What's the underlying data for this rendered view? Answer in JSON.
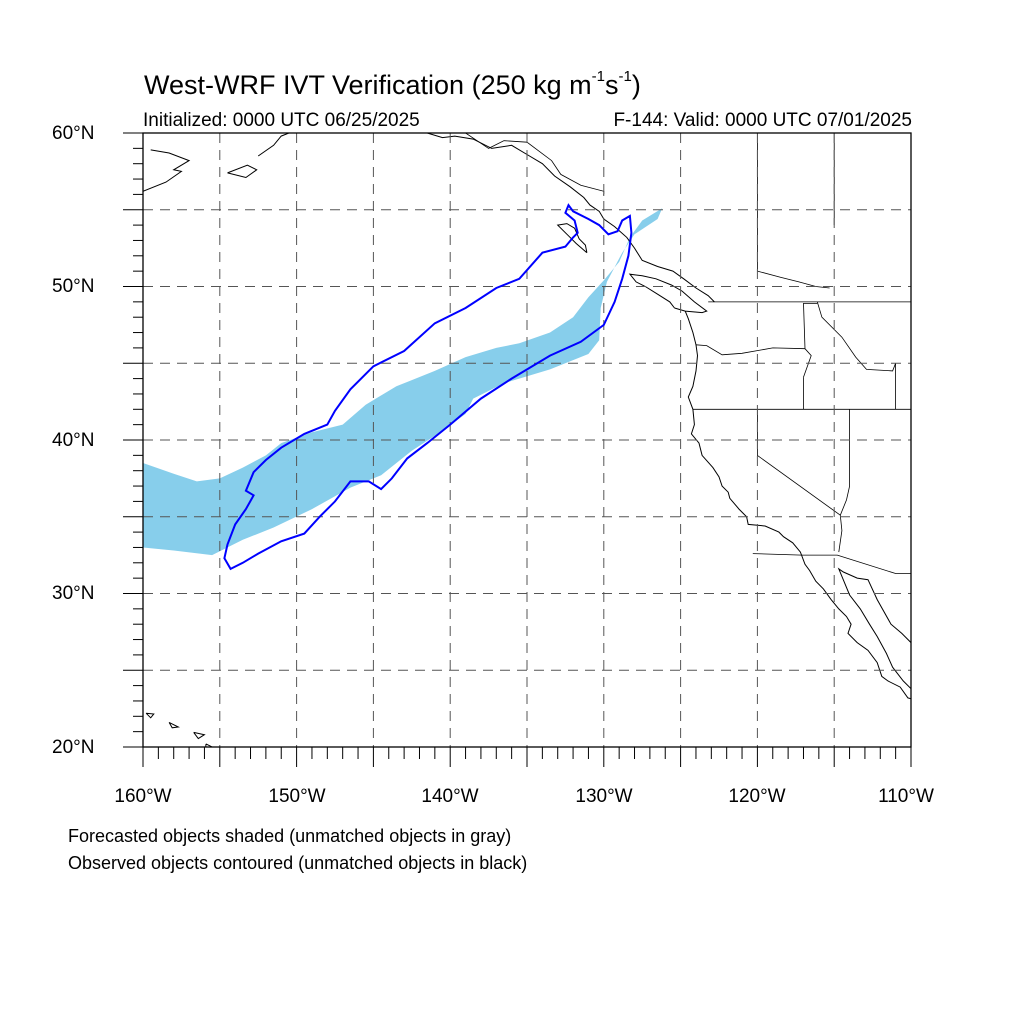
{
  "title": {
    "main": "West-WRF IVT Verification (250 kg m",
    "exp1": "-1",
    "mid": "s",
    "exp2": "-1",
    "end": ")"
  },
  "subtitle_left": "Initialized: 0000 UTC 06/25/2025",
  "subtitle_right": "F-144: Valid: 0000 UTC 07/01/2025",
  "lat_labels": [
    "60°N",
    "50°N",
    "40°N",
    "30°N",
    "20°N"
  ],
  "lon_labels": [
    "160°W",
    "150°W",
    "140°W",
    "130°W",
    "120°W",
    "110°W"
  ],
  "footnotes": [
    "Forecasted objects shaded (unmatched objects in gray)",
    "Observed objects contoured (unmatched objects in black)"
  ],
  "map_extent": {
    "lon": [
      -160,
      -110
    ],
    "lat": [
      20,
      60
    ]
  },
  "colors": {
    "forecast_fill": "#87ceeb",
    "observed_contour": "#0000ff",
    "coast": "#000000",
    "grid": "#555555"
  },
  "forecast_object": [
    [
      -160,
      38.5
    ],
    [
      -158,
      37.8
    ],
    [
      -156.5,
      37.3
    ],
    [
      -155,
      37.5
    ],
    [
      -153.5,
      38.2
    ],
    [
      -152,
      39
    ],
    [
      -151,
      39.8
    ],
    [
      -149,
      40.5
    ],
    [
      -147,
      41
    ],
    [
      -145.5,
      42.3
    ],
    [
      -143.5,
      43.5
    ],
    [
      -141,
      44.5
    ],
    [
      -139,
      45.4
    ],
    [
      -137,
      46
    ],
    [
      -135.5,
      46.3
    ],
    [
      -133.5,
      47
    ],
    [
      -132,
      48
    ],
    [
      -131,
      49.3
    ],
    [
      -130,
      50.4
    ],
    [
      -129,
      51.6
    ],
    [
      -128.3,
      53.2
    ],
    [
      -127.5,
      54.3
    ],
    [
      -126.2,
      55.1
    ],
    [
      -126.5,
      54.4
    ],
    [
      -128,
      53.4
    ],
    [
      -128.8,
      52.2
    ],
    [
      -129.8,
      50.3
    ],
    [
      -130.2,
      48.6
    ],
    [
      -130.3,
      46.5
    ],
    [
      -131,
      45.6
    ],
    [
      -133.5,
      44.6
    ],
    [
      -136.5,
      43.7
    ],
    [
      -138.5,
      42.7
    ],
    [
      -139,
      41.7
    ],
    [
      -140.5,
      40.6
    ],
    [
      -142.5,
      39.3
    ],
    [
      -144.5,
      37.7
    ],
    [
      -146.5,
      36.9
    ],
    [
      -149,
      35.5
    ],
    [
      -151.5,
      34.3
    ],
    [
      -153.5,
      33.5
    ],
    [
      -155.5,
      32.5
    ],
    [
      -158,
      32.8
    ],
    [
      -160,
      33
    ]
  ],
  "observed_contour": [
    [
      -154.3,
      31.6
    ],
    [
      -153.5,
      32
    ],
    [
      -152.5,
      32.6
    ],
    [
      -151,
      33.4
    ],
    [
      -149.5,
      33.9
    ],
    [
      -148.5,
      35
    ],
    [
      -147.5,
      36
    ],
    [
      -146.5,
      37.3
    ],
    [
      -145.3,
      37.3
    ],
    [
      -144.5,
      36.8
    ],
    [
      -143.8,
      37.5
    ],
    [
      -142.8,
      38.8
    ],
    [
      -141.5,
      39.8
    ],
    [
      -140,
      41
    ],
    [
      -138,
      42.7
    ],
    [
      -136,
      44
    ],
    [
      -133.5,
      45.5
    ],
    [
      -131.5,
      46.4
    ],
    [
      -130,
      47.5
    ],
    [
      -129.3,
      49
    ],
    [
      -128.8,
      50.5
    ],
    [
      -128.4,
      52
    ],
    [
      -128.2,
      53.5
    ],
    [
      -128.3,
      54.6
    ],
    [
      -128.8,
      54.3
    ],
    [
      -129.1,
      53.6
    ],
    [
      -129.7,
      53.4
    ],
    [
      -130.3,
      54
    ],
    [
      -131,
      54.4
    ],
    [
      -132,
      54.9
    ],
    [
      -132.3,
      55.3
    ],
    [
      -132.5,
      54.8
    ],
    [
      -131.9,
      54.3
    ],
    [
      -131.7,
      53.5
    ],
    [
      -132,
      53.2
    ],
    [
      -132.5,
      52.6
    ],
    [
      -134,
      52.2
    ],
    [
      -135.5,
      50.5
    ],
    [
      -137,
      49.9
    ],
    [
      -139,
      48.6
    ],
    [
      -141,
      47.6
    ],
    [
      -143,
      45.8
    ],
    [
      -145,
      44.8
    ],
    [
      -146.5,
      43.3
    ],
    [
      -147.5,
      41.9
    ],
    [
      -148,
      41
    ],
    [
      -149.5,
      40.4
    ],
    [
      -151,
      39.5
    ],
    [
      -152,
      38.7
    ],
    [
      -152.8,
      37.9
    ],
    [
      -153.3,
      36.7
    ],
    [
      -152.8,
      36.4
    ],
    [
      -153.3,
      35.5
    ],
    [
      -154,
      34.5
    ],
    [
      -154.5,
      33.2
    ],
    [
      -154.7,
      32.3
    ],
    [
      -154.3,
      31.6
    ]
  ],
  "coastlines": [
    [
      [
        -124.7,
        48.4
      ],
      [
        -124.5,
        47.9
      ],
      [
        -124.2,
        47
      ],
      [
        -124,
        46.2
      ],
      [
        -123.9,
        45.5
      ],
      [
        -124,
        44.5
      ],
      [
        -124.2,
        43.5
      ],
      [
        -124.5,
        42.8
      ],
      [
        -124.2,
        42
      ],
      [
        -124.1,
        41
      ],
      [
        -124.3,
        40.4
      ],
      [
        -123.8,
        39.8
      ],
      [
        -123.6,
        39
      ],
      [
        -122.9,
        38.2
      ],
      [
        -122.5,
        37.6
      ],
      [
        -122.3,
        37
      ],
      [
        -121.9,
        36.6
      ],
      [
        -121.8,
        36.2
      ],
      [
        -121.2,
        35.5
      ],
      [
        -120.7,
        35
      ],
      [
        -120.6,
        34.5
      ],
      [
        -119.5,
        34.4
      ],
      [
        -118.6,
        34
      ],
      [
        -118.3,
        33.7
      ],
      [
        -117.7,
        33.3
      ],
      [
        -117.2,
        32.7
      ],
      [
        -116.9,
        31.9
      ],
      [
        -116.6,
        31.5
      ],
      [
        -116.2,
        30.8
      ],
      [
        -115.7,
        30.3
      ],
      [
        -115.2,
        29.6
      ],
      [
        -114.7,
        29
      ],
      [
        -114.2,
        28.5
      ],
      [
        -113.9,
        28
      ],
      [
        -114.1,
        27.4
      ],
      [
        -113.5,
        26.8
      ],
      [
        -112.8,
        26.3
      ],
      [
        -112.2,
        25.5
      ],
      [
        -111.9,
        24.6
      ],
      [
        -111.5,
        24.3
      ],
      [
        -110.7,
        23.9
      ],
      [
        -110.2,
        23.2
      ],
      [
        -109.5,
        23
      ]
    ],
    [
      [
        -109.6,
        22.9
      ],
      [
        -110,
        23.8
      ],
      [
        -110.5,
        24.3
      ],
      [
        -111.2,
        25.2
      ],
      [
        -111.6,
        26.1
      ],
      [
        -112.2,
        27.2
      ],
      [
        -112.7,
        28
      ],
      [
        -113.3,
        29
      ],
      [
        -114,
        29.9
      ],
      [
        -114.7,
        31.6
      ],
      [
        -114.4,
        31.4
      ],
      [
        -113.5,
        31
      ],
      [
        -112.8,
        30.9
      ],
      [
        -112.2,
        29.6
      ],
      [
        -111.3,
        28
      ],
      [
        -110.6,
        27.4
      ],
      [
        -110,
        26.8
      ],
      [
        -109.4,
        26
      ],
      [
        -108.9,
        25.4
      ],
      [
        -108.3,
        24.9
      ],
      [
        -107.5,
        24.3
      ]
    ],
    [
      [
        -122.8,
        49
      ],
      [
        -123.2,
        49.4
      ],
      [
        -124,
        49.9
      ],
      [
        -124.8,
        50.5
      ],
      [
        -125.5,
        51
      ],
      [
        -126.5,
        51.3
      ],
      [
        -127.5,
        51.7
      ],
      [
        -128,
        52.5
      ],
      [
        -128.5,
        53.2
      ],
      [
        -129.3,
        53.9
      ],
      [
        -130,
        54.4
      ],
      [
        -130.3,
        54.9
      ],
      [
        -130.9,
        55.3
      ],
      [
        -131.3,
        55.8
      ],
      [
        -132.2,
        56.5
      ],
      [
        -133.2,
        57.2
      ],
      [
        -134,
        58
      ],
      [
        -135,
        58.6
      ],
      [
        -136,
        59.2
      ],
      [
        -137.3,
        59
      ],
      [
        -138.5,
        59.6
      ],
      [
        -139.7,
        59.8
      ],
      [
        -140.5,
        59.7
      ],
      [
        -141.5,
        60
      ]
    ],
    [
      [
        -125.4,
        48.6
      ],
      [
        -124.7,
        48.4
      ],
      [
        -123.6,
        48.3
      ],
      [
        -123.3,
        48.4
      ],
      [
        -124.1,
        49
      ],
      [
        -124.9,
        49.7
      ],
      [
        -125.6,
        50.1
      ],
      [
        -126.6,
        50.5
      ],
      [
        -127.5,
        50.7
      ],
      [
        -128.3,
        50.8
      ],
      [
        -127.9,
        50.3
      ],
      [
        -127.3,
        50
      ],
      [
        -126.5,
        49.5
      ],
      [
        -125.7,
        49
      ],
      [
        -125.4,
        48.6
      ]
    ],
    [
      [
        -131.1,
        52.2
      ],
      [
        -131.8,
        52.8
      ],
      [
        -132.3,
        53.3
      ],
      [
        -133,
        54
      ],
      [
        -132.4,
        54.1
      ],
      [
        -131.9,
        53.8
      ],
      [
        -131.6,
        53.1
      ],
      [
        -131.2,
        52.7
      ],
      [
        -131.1,
        52.2
      ]
    ],
    [
      [
        -160,
        56.2
      ],
      [
        -158.5,
        56.8
      ],
      [
        -157.5,
        57.5
      ],
      [
        -158,
        57.6
      ],
      [
        -157,
        58.2
      ],
      [
        -158.3,
        58.7
      ],
      [
        -159.5,
        58.9
      ]
    ],
    [
      [
        -154.5,
        57.4
      ],
      [
        -153.2,
        57.9
      ],
      [
        -152.6,
        57.6
      ],
      [
        -153.3,
        57.1
      ],
      [
        -154.5,
        57.4
      ]
    ],
    [
      [
        -152.5,
        58.5
      ],
      [
        -151.5,
        59.2
      ],
      [
        -151,
        59.8
      ],
      [
        -150.5,
        60
      ]
    ],
    [
      [
        -155.9,
        20.2
      ],
      [
        -155.1,
        19.8
      ],
      [
        -155,
        19.3
      ],
      [
        -155.7,
        18.95
      ],
      [
        -155.95,
        19.6
      ],
      [
        -155.9,
        20.2
      ]
    ],
    [
      [
        -156.7,
        20.95
      ],
      [
        -156,
        20.8
      ],
      [
        -156.4,
        20.55
      ],
      [
        -156.7,
        20.95
      ]
    ],
    [
      [
        -158.3,
        21.6
      ],
      [
        -157.7,
        21.3
      ],
      [
        -158.1,
        21.25
      ],
      [
        -158.3,
        21.6
      ]
    ],
    [
      [
        -159.8,
        22.2
      ],
      [
        -159.3,
        22.15
      ],
      [
        -159.5,
        21.9
      ],
      [
        -159.8,
        22.2
      ]
    ]
  ],
  "borders": [
    [
      [
        -123.2,
        49
      ],
      [
        -110,
        49
      ]
    ],
    [
      [
        -124.2,
        42
      ],
      [
        -110,
        42
      ]
    ],
    [
      [
        -120,
        42
      ],
      [
        -120,
        39
      ],
      [
        -114.6,
        35.1
      ]
    ],
    [
      [
        -124,
        46.2
      ],
      [
        -123.3,
        46.15
      ],
      [
        -122.3,
        45.55
      ],
      [
        -121,
        45.65
      ],
      [
        -119,
        46
      ],
      [
        -116.9,
        45.95
      ]
    ],
    [
      [
        -116.9,
        45.95
      ],
      [
        -117,
        48.9
      ],
      [
        -116.1,
        48.9
      ]
    ],
    [
      [
        -117,
        44.1
      ],
      [
        -116.5,
        45.5
      ],
      [
        -116.9,
        45.95
      ]
    ],
    [
      [
        -117,
        42
      ],
      [
        -117,
        44.1
      ]
    ],
    [
      [
        -116.1,
        49
      ],
      [
        -115.8,
        48
      ],
      [
        -114.5,
        46.7
      ],
      [
        -113.6,
        45.4
      ],
      [
        -112.9,
        44.6
      ],
      [
        -111.2,
        44.5
      ],
      [
        -111,
        45
      ]
    ],
    [
      [
        -114,
        42
      ],
      [
        -114,
        37
      ],
      [
        -114.2,
        36.1
      ],
      [
        -114.6,
        35.1
      ],
      [
        -114.5,
        34.1
      ],
      [
        -114.7,
        32.7
      ]
    ],
    [
      [
        -111,
        42
      ],
      [
        -111,
        45
      ]
    ],
    [
      [
        -120.3,
        32.6
      ],
      [
        -117.1,
        32.5
      ],
      [
        -114.8,
        32.5
      ],
      [
        -111,
        31.3
      ],
      [
        -108.2,
        31.3
      ]
    ],
    [
      [
        -130,
        55.9
      ],
      [
        -130,
        56.2
      ],
      [
        -131.5,
        56.6
      ],
      [
        -132.8,
        57.3
      ],
      [
        -133.4,
        58.2
      ],
      [
        -135,
        59.4
      ],
      [
        -136.5,
        59.5
      ],
      [
        -137.5,
        59
      ],
      [
        -139,
        60
      ]
    ],
    [
      [
        -120,
        60
      ],
      [
        -120,
        51
      ]
    ],
    [
      [
        -120,
        51
      ],
      [
        -118.5,
        50.6
      ],
      [
        -117.3,
        50.3
      ],
      [
        -116.2,
        50
      ],
      [
        -115.3,
        49.9
      ]
    ],
    [
      [
        -115,
        60
      ],
      [
        -115,
        54
      ]
    ]
  ]
}
